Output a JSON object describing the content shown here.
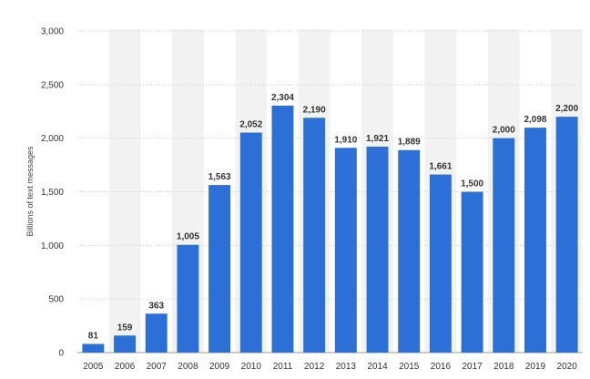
{
  "chart_data": {
    "type": "bar",
    "categories": [
      "2005",
      "2006",
      "2007",
      "2008",
      "2009",
      "2010",
      "2011",
      "2012",
      "2013",
      "2014",
      "2015",
      "2016",
      "2017",
      "2018",
      "2019",
      "2020"
    ],
    "values": [
      81,
      159,
      363,
      1005,
      1563,
      2052,
      2304,
      2190,
      1910,
      1921,
      1889,
      1661,
      1500,
      2000,
      2098,
      2200
    ],
    "value_labels": [
      "81",
      "159",
      "363",
      "1,005",
      "1,563",
      "2,052",
      "2,304",
      "2,190",
      "1,910",
      "1,921",
      "1,889",
      "1,661",
      "1,500",
      "2,000",
      "2,098",
      "2,200"
    ],
    "yticks": [
      0,
      500,
      1000,
      1500,
      2000,
      2500,
      3000
    ],
    "ytick_labels": [
      "0",
      "500",
      "1,000",
      "1,500",
      "2,000",
      "2,500",
      "3,000"
    ],
    "ylabel": "Billions of text messages",
    "xlabel": "",
    "title": "",
    "ylim": [
      0,
      3000
    ],
    "grid": true,
    "bar_color": "#2c6fd6",
    "alt_column_band_color": "#f2f2f2"
  }
}
